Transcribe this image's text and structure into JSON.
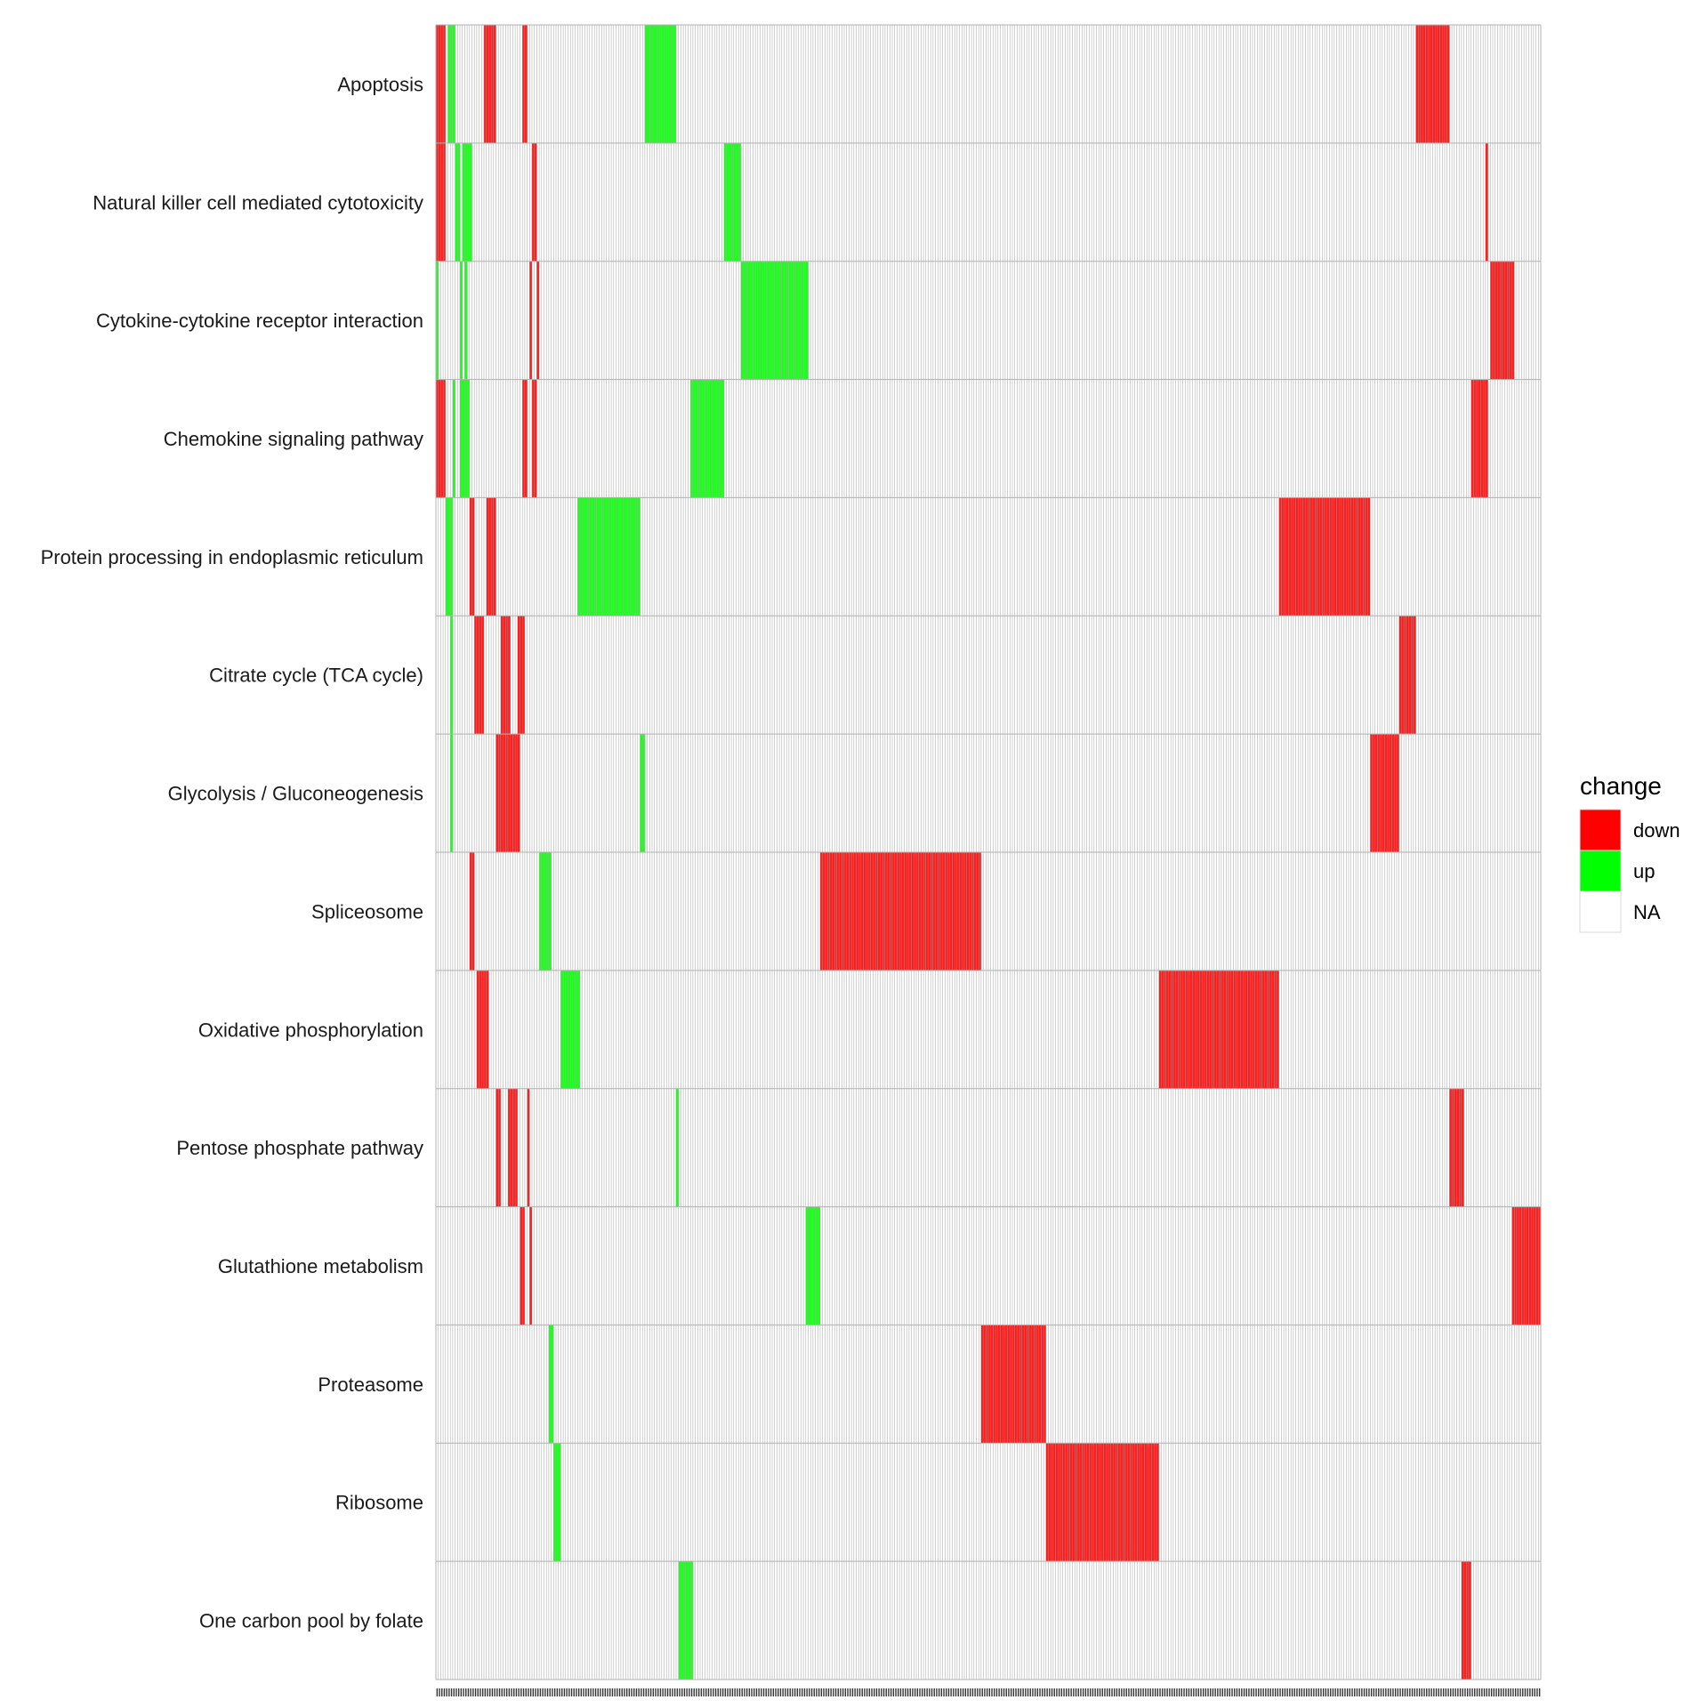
{
  "chart_data": {
    "type": "heatmap",
    "title": "",
    "xlabel": "",
    "ylabel": "",
    "x_count": 460,
    "rows": [
      "Apoptosis",
      "Natural killer cell mediated cytotoxicity",
      "Cytokine-cytokine receptor interaction",
      "Chemokine signaling pathway",
      "Protein processing in endoplasmic reticulum",
      "Citrate cycle (TCA cycle)",
      "Glycolysis / Gluconeogenesis",
      "Spliceosome",
      "Oxidative phosphorylation",
      "Pentose phosphate pathway",
      "Glutathione metabolism",
      "Proteasome",
      "Ribosome",
      "One carbon pool by folate"
    ],
    "cells": [
      {
        "row": 0,
        "down": [
          [
            0,
            4
          ],
          [
            20,
            25
          ],
          [
            36,
            38
          ],
          [
            408,
            422
          ]
        ],
        "up": [
          [
            5,
            8
          ],
          [
            87,
            100
          ]
        ]
      },
      {
        "row": 1,
        "down": [
          [
            0,
            4
          ],
          [
            40,
            42
          ],
          [
            437,
            438
          ]
        ],
        "up": [
          [
            8,
            10
          ],
          [
            11,
            15
          ],
          [
            120,
            127
          ]
        ]
      },
      {
        "row": 2,
        "down": [
          [
            39,
            40
          ],
          [
            42,
            43
          ],
          [
            439,
            449
          ]
        ],
        "up": [
          [
            0,
            1
          ],
          [
            10,
            11
          ],
          [
            12,
            13
          ],
          [
            127,
            155
          ]
        ]
      },
      {
        "row": 3,
        "down": [
          [
            0,
            4
          ],
          [
            36,
            38
          ],
          [
            40,
            42
          ],
          [
            431,
            438
          ]
        ],
        "up": [
          [
            7,
            8
          ],
          [
            10,
            14
          ],
          [
            106,
            120
          ]
        ]
      },
      {
        "row": 4,
        "down": [
          [
            14,
            16
          ],
          [
            21,
            25
          ],
          [
            351,
            389
          ]
        ],
        "up": [
          [
            4,
            7
          ],
          [
            59,
            85
          ]
        ]
      },
      {
        "row": 5,
        "down": [
          [
            16,
            20
          ],
          [
            27,
            31
          ],
          [
            34,
            37
          ],
          [
            401,
            408
          ]
        ],
        "up": [
          [
            6,
            7
          ]
        ]
      },
      {
        "row": 6,
        "down": [
          [
            25,
            35
          ],
          [
            389,
            401
          ]
        ],
        "up": [
          [
            6,
            7
          ],
          [
            85,
            87
          ]
        ]
      },
      {
        "row": 7,
        "down": [
          [
            14,
            16
          ],
          [
            160,
            227
          ]
        ],
        "up": [
          [
            43,
            48
          ]
        ]
      },
      {
        "row": 8,
        "down": [
          [
            17,
            22
          ],
          [
            301,
            351
          ]
        ],
        "up": [
          [
            52,
            60
          ]
        ]
      },
      {
        "row": 9,
        "down": [
          [
            25,
            27
          ],
          [
            30,
            34
          ],
          [
            38,
            39
          ],
          [
            422,
            428
          ]
        ],
        "up": [
          [
            100,
            101
          ]
        ]
      },
      {
        "row": 10,
        "down": [
          [
            35,
            37
          ],
          [
            39,
            40
          ],
          [
            448,
            460
          ]
        ],
        "up": [
          [
            154,
            160
          ]
        ]
      },
      {
        "row": 11,
        "down": [
          [
            227,
            254
          ]
        ],
        "up": [
          [
            47,
            49
          ]
        ]
      },
      {
        "row": 12,
        "down": [
          [
            254,
            301
          ]
        ],
        "up": [
          [
            49,
            52
          ]
        ]
      },
      {
        "row": 13,
        "down": [
          [
            427,
            431
          ]
        ],
        "up": [
          [
            101,
            107
          ]
        ]
      }
    ],
    "legend": {
      "title": "change",
      "items": [
        {
          "label": "down",
          "color": "#ff0000"
        },
        {
          "label": "up",
          "color": "#00ff00"
        },
        {
          "label": "NA",
          "color": "#ffffff"
        }
      ],
      "position": "right"
    },
    "colors": {
      "down": "#ff0000",
      "up": "#00ff00",
      "na": "#ffffff",
      "cell_border": "#b0b0b0",
      "axis_ticks": "#333333"
    }
  }
}
